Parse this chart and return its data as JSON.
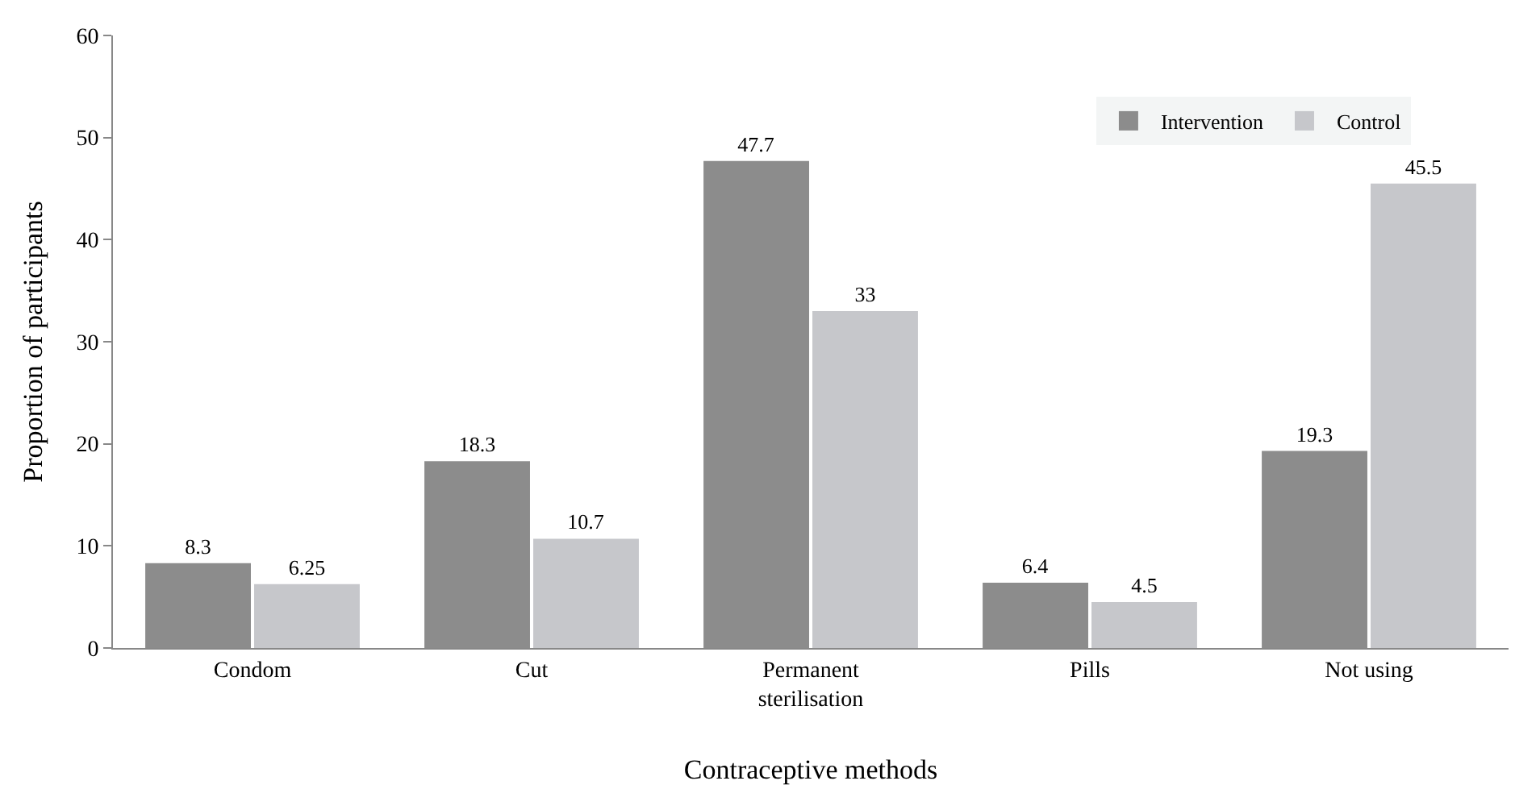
{
  "chart_data": {
    "type": "bar",
    "xlabel": "Contraceptive methods",
    "ylabel": "Proportion of participants",
    "categories": [
      "Condom",
      "Cut",
      "Permanent sterilisation",
      "Pills",
      "Not using"
    ],
    "series": [
      {
        "name": "Intervention",
        "color": "#8c8c8c",
        "values": [
          8.3,
          18.3,
          47.7,
          6.4,
          19.3
        ]
      },
      {
        "name": "Control",
        "color": "#c6c7cb",
        "values": [
          6.25,
          10.7,
          33,
          4.5,
          45.5
        ]
      }
    ],
    "ylim": [
      0,
      60
    ],
    "yticks": [
      0,
      10,
      20,
      30,
      40,
      50,
      60
    ],
    "grid": false,
    "legend": "top right",
    "data_labels": true
  }
}
